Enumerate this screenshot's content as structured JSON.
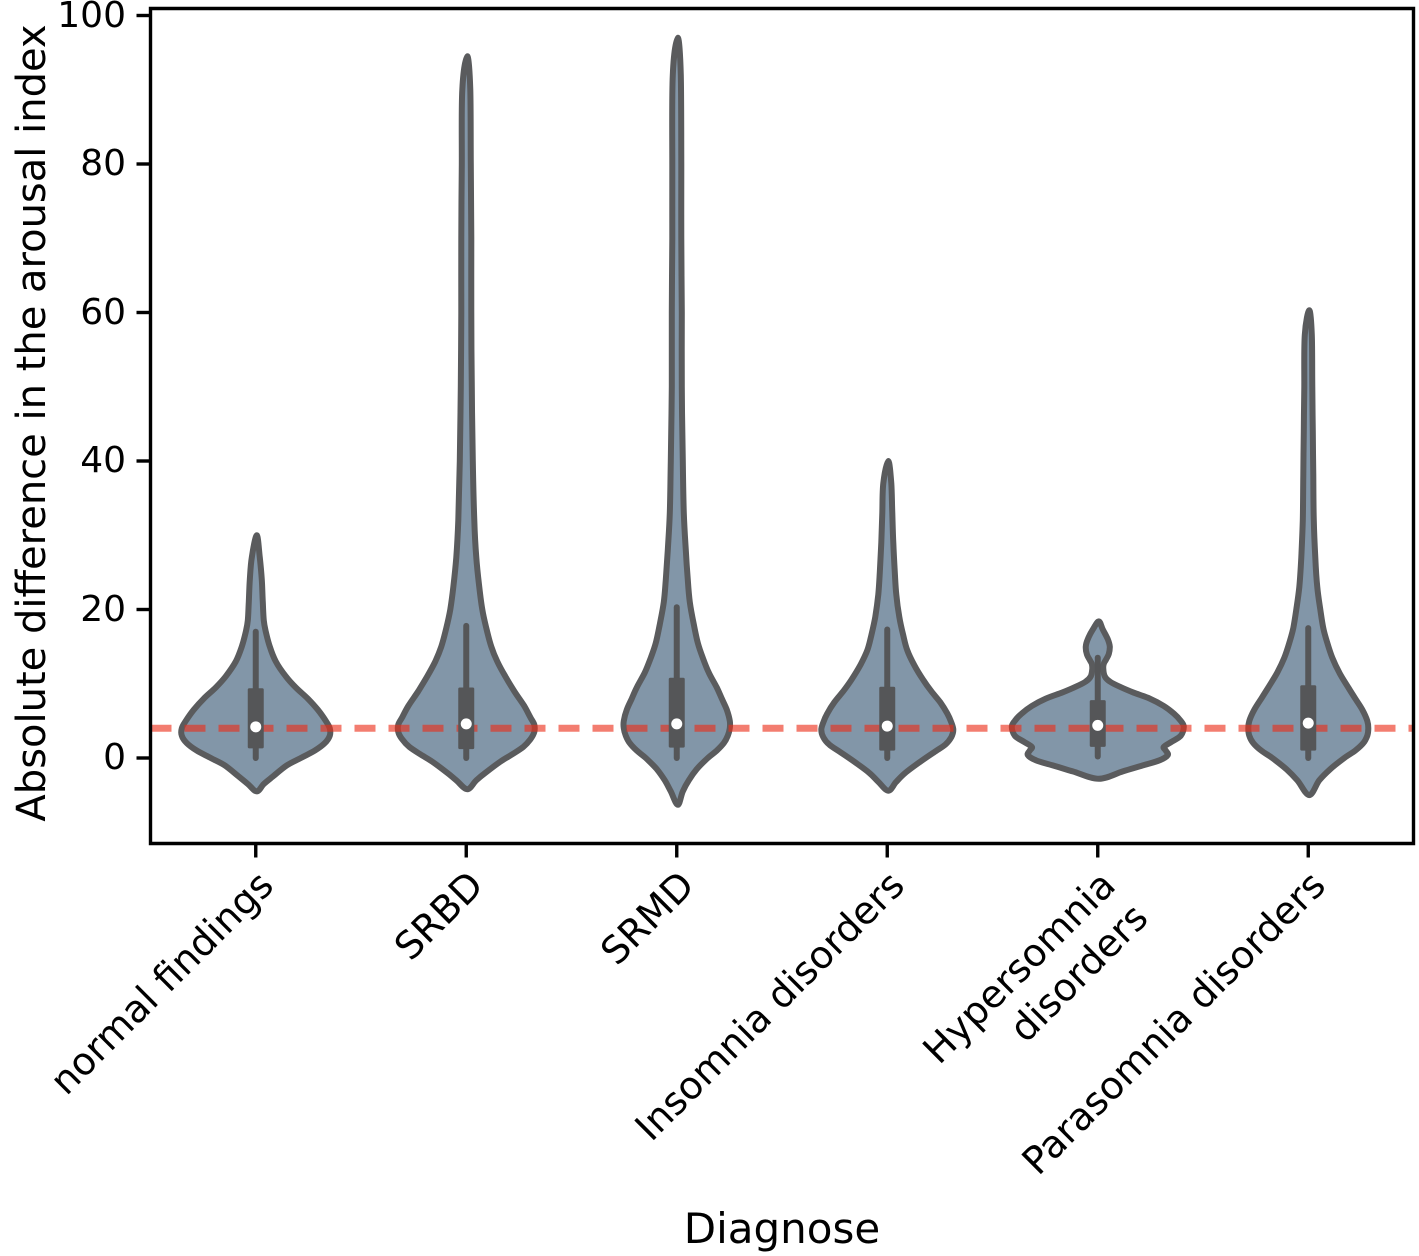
{
  "figure": {
    "xlabel": "Diagnose",
    "ylabel": "Absolute difference in the arousal index"
  },
  "chart_data": {
    "type": "violin",
    "title": "",
    "xlabel": "Diagnose",
    "ylabel": "Absolute difference in the arousal index",
    "ylim": [
      -11.5,
      101
    ],
    "yticks": [
      0,
      20,
      40,
      60,
      80,
      100
    ],
    "grid": false,
    "legend": "none",
    "reference_line": {
      "y": 4,
      "style": "dashed",
      "color": "rgba(235,45,25,0.62)",
      "dash": [
        21,
        13
      ],
      "width": 7
    },
    "colors": {
      "violin_fill": "#8296a8",
      "violin_edge": "#5a5b5d",
      "box": "#555658",
      "median_dot": "#ffffff",
      "axis": "#000000"
    },
    "categories": [
      "normal findings",
      "SRBD",
      "SRMD",
      "Insomnia disorders",
      "Hypersomnia disorders",
      "Parasomnia disorders"
    ],
    "series": [
      {
        "label": "normal findings",
        "min": -4.5,
        "max": 30,
        "whisker_low": 0,
        "whisker_high": 17,
        "q1": 1.3,
        "q3": 9.4,
        "median": 4.2,
        "profile": [
          [
            30,
            1
          ],
          [
            27,
            4
          ],
          [
            24,
            6
          ],
          [
            21,
            7
          ],
          [
            18.5,
            8
          ],
          [
            17,
            10
          ],
          [
            15,
            14
          ],
          [
            13,
            20
          ],
          [
            11,
            30
          ],
          [
            9.5,
            40
          ],
          [
            8,
            52
          ],
          [
            6.5,
            62
          ],
          [
            5,
            70
          ],
          [
            4,
            74
          ],
          [
            3,
            74
          ],
          [
            2,
            69
          ],
          [
            1,
            59
          ],
          [
            0,
            45
          ],
          [
            -1,
            31
          ],
          [
            -2.5,
            17
          ],
          [
            -3.5,
            8
          ],
          [
            -4.5,
            1
          ]
        ]
      },
      {
        "label": "SRBD",
        "min": -4.2,
        "max": 94.5,
        "whisker_low": 0,
        "whisker_high": 17.8,
        "q1": 1.2,
        "q3": 9.5,
        "median": 4.6,
        "profile": [
          [
            94.5,
            1
          ],
          [
            90,
            4
          ],
          [
            80,
            4.5
          ],
          [
            70,
            5
          ],
          [
            60,
            5
          ],
          [
            50,
            5.5
          ],
          [
            40,
            6.5
          ],
          [
            32,
            8
          ],
          [
            27,
            10
          ],
          [
            23,
            13
          ],
          [
            20,
            16
          ],
          [
            17.5,
            20
          ],
          [
            15,
            25
          ],
          [
            13,
            31
          ],
          [
            11,
            39
          ],
          [
            9,
            48
          ],
          [
            7,
            58
          ],
          [
            5.5,
            64
          ],
          [
            4.5,
            68
          ],
          [
            3.5,
            68
          ],
          [
            2.5,
            64
          ],
          [
            1.5,
            57
          ],
          [
            0.5,
            46
          ],
          [
            -0.5,
            34
          ],
          [
            -2,
            19
          ],
          [
            -3,
            10
          ],
          [
            -4.2,
            1
          ]
        ]
      },
      {
        "label": "SRMD",
        "min": -6.3,
        "max": 97,
        "whisker_low": 0,
        "whisker_high": 20.3,
        "q1": 1.4,
        "q3": 10.8,
        "median": 4.6,
        "profile": [
          [
            97,
            1
          ],
          [
            92,
            4
          ],
          [
            80,
            4.5
          ],
          [
            70,
            4.5
          ],
          [
            60,
            5
          ],
          [
            50,
            5
          ],
          [
            40,
            6
          ],
          [
            33,
            7
          ],
          [
            28,
            9
          ],
          [
            24,
            11
          ],
          [
            21,
            13
          ],
          [
            18,
            17
          ],
          [
            15.5,
            21
          ],
          [
            13.5,
            26
          ],
          [
            11.5,
            32
          ],
          [
            9.5,
            40
          ],
          [
            8,
            45
          ],
          [
            6.5,
            50
          ],
          [
            5,
            53
          ],
          [
            4,
            53
          ],
          [
            3,
            51
          ],
          [
            2,
            47
          ],
          [
            1,
            40
          ],
          [
            0,
            31
          ],
          [
            -1.5,
            20
          ],
          [
            -3,
            12
          ],
          [
            -4.5,
            6
          ],
          [
            -6.3,
            1
          ]
        ]
      },
      {
        "label": "Insomnia disorders",
        "min": -4.4,
        "max": 40,
        "whisker_low": 0,
        "whisker_high": 17.3,
        "q1": 1.0,
        "q3": 9.6,
        "median": 4.3,
        "profile": [
          [
            40,
            1
          ],
          [
            37,
            4
          ],
          [
            33,
            5
          ],
          [
            29,
            6
          ],
          [
            25,
            7.5
          ],
          [
            22,
            9
          ],
          [
            19,
            12
          ],
          [
            16.5,
            16
          ],
          [
            14.5,
            20
          ],
          [
            12.5,
            27
          ],
          [
            10.5,
            36
          ],
          [
            9,
            44
          ],
          [
            7.5,
            53
          ],
          [
            6,
            60
          ],
          [
            4.8,
            64
          ],
          [
            3.8,
            66
          ],
          [
            2.8,
            64
          ],
          [
            1.8,
            58
          ],
          [
            0.8,
            47
          ],
          [
            -0.5,
            33
          ],
          [
            -2,
            18
          ],
          [
            -3.2,
            9
          ],
          [
            -4.4,
            1
          ]
        ]
      },
      {
        "label": "Hypersomnia disorders",
        "min": -2.8,
        "max": 18.4,
        "whisker_low": 0.2,
        "whisker_high": 13.5,
        "q1": 1.5,
        "q3": 7.8,
        "median": 4.4,
        "profile": [
          [
            18.4,
            1
          ],
          [
            17.3,
            5
          ],
          [
            16,
            10
          ],
          [
            15,
            12
          ],
          [
            14,
            11
          ],
          [
            13.2,
            8
          ],
          [
            12.7,
            6
          ],
          [
            12,
            5.5
          ],
          [
            11,
            7
          ],
          [
            10.3,
            12
          ],
          [
            9.6,
            22
          ],
          [
            8.8,
            36
          ],
          [
            8,
            52
          ],
          [
            7,
            66
          ],
          [
            6,
            76
          ],
          [
            5,
            83
          ],
          [
            4.2,
            86
          ],
          [
            3,
            83
          ],
          [
            2.2,
            74
          ],
          [
            1.5,
            66
          ],
          [
            1,
            68
          ],
          [
            0.4,
            70
          ],
          [
            -0.3,
            62
          ],
          [
            -1,
            45
          ],
          [
            -1.8,
            25
          ],
          [
            -2.8,
            1
          ]
        ]
      },
      {
        "label": "Parasomnia disorders",
        "min": -5,
        "max": 60.3,
        "whisker_low": 0,
        "whisker_high": 17.5,
        "q1": 1.0,
        "q3": 9.8,
        "median": 4.7,
        "profile": [
          [
            60.3,
            1
          ],
          [
            57,
            3.5
          ],
          [
            50,
            4
          ],
          [
            44,
            4.5
          ],
          [
            38,
            5
          ],
          [
            32,
            5.5
          ],
          [
            27,
            7
          ],
          [
            23,
            9
          ],
          [
            20,
            12
          ],
          [
            17.5,
            15
          ],
          [
            15.5,
            19
          ],
          [
            13.5,
            24
          ],
          [
            11.5,
            31
          ],
          [
            9.5,
            40
          ],
          [
            8,
            47
          ],
          [
            6.5,
            54
          ],
          [
            5,
            59
          ],
          [
            4,
            60
          ],
          [
            3,
            59
          ],
          [
            2,
            55
          ],
          [
            1,
            47
          ],
          [
            0,
            36
          ],
          [
            -1.5,
            22
          ],
          [
            -3,
            11
          ],
          [
            -5,
            1
          ]
        ]
      }
    ]
  }
}
